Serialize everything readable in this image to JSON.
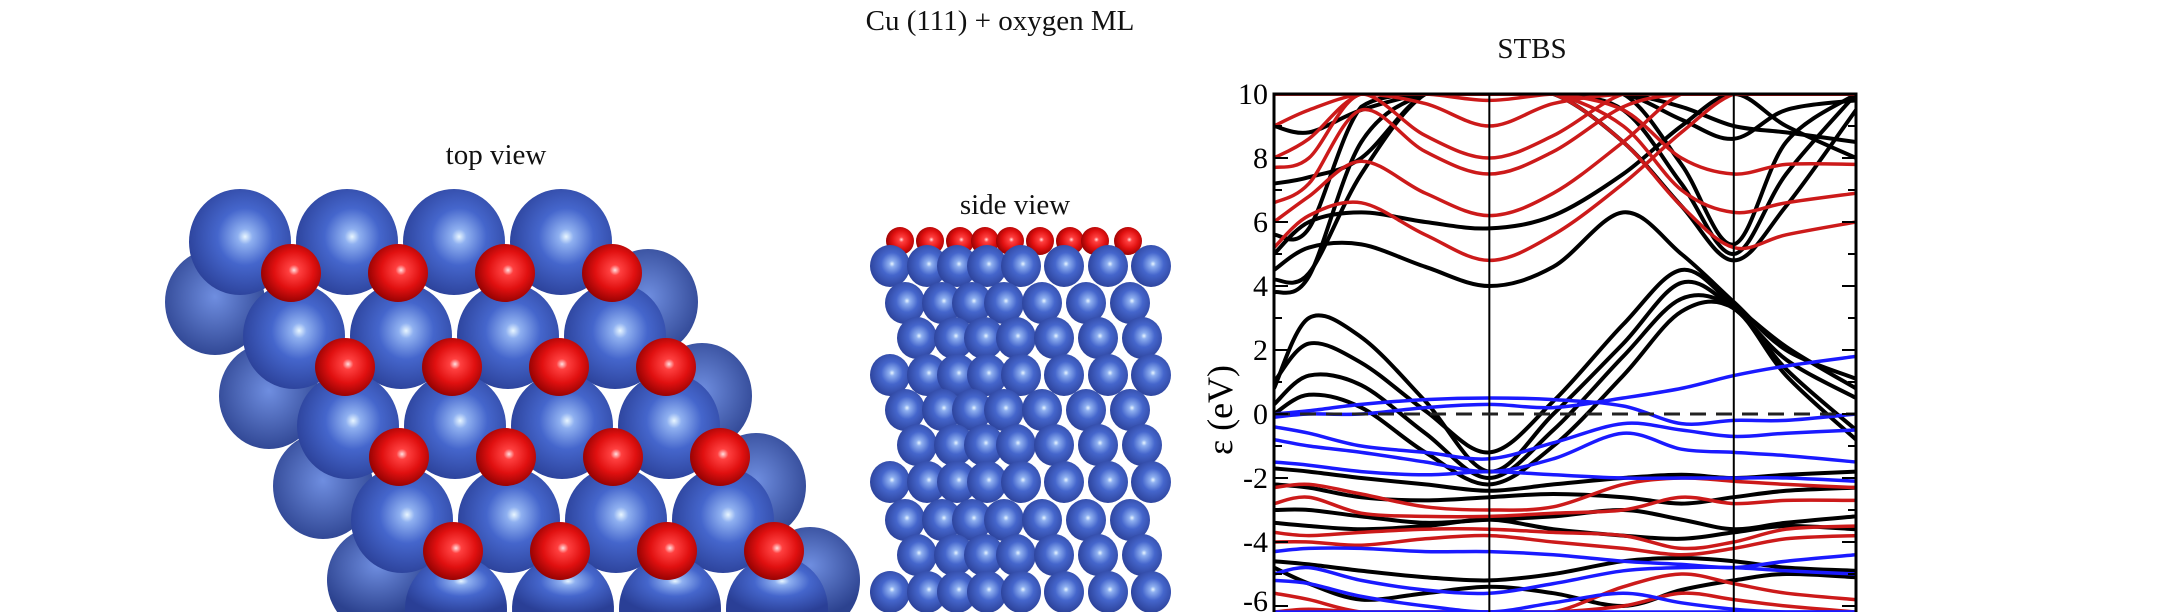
{
  "figure": {
    "title": "Cu (111) + oxygen ML",
    "top_view_label": "top view",
    "side_view_label": "side view",
    "colors": {
      "copper": "#3f5fc4",
      "oxygen": "#e01010"
    }
  },
  "chart_data": {
    "type": "line",
    "title": "STBS",
    "ylabel": "ε (eV)",
    "xlabel": "",
    "ylim": [
      -8,
      10
    ],
    "yticks": [
      10,
      8,
      6,
      4,
      2,
      0,
      -2,
      -4,
      -6
    ],
    "fermi_level": 0,
    "k_nodes": [
      0,
      0.06,
      0.15,
      0.26,
      0.37,
      0.48,
      0.6,
      0.7,
      0.79,
      0.88,
      1.0
    ],
    "high_symmetry_k": [
      0.37,
      0.79
    ],
    "colors": {
      "bulk": "#000000",
      "oxygen": "#cc1a1a",
      "surface": "#1a1aff"
    },
    "series": [
      {
        "name": "bulk",
        "bands": [
          [
            4.5,
            5.2,
            5.3,
            4.6,
            4.0,
            4.6,
            6.3,
            5.0,
            3.5,
            2.0,
            1.1
          ],
          [
            1.0,
            2.2,
            1.6,
            0.1,
            -1.2,
            0.4,
            2.8,
            4.5,
            3.4,
            2.1,
            0.8
          ],
          [
            0.8,
            3.0,
            2.4,
            0.4,
            -1.8,
            0.0,
            2.2,
            4.1,
            3.3,
            1.7,
            0.5
          ],
          [
            0.3,
            1.2,
            0.9,
            -0.6,
            -2.0,
            -0.5,
            1.8,
            3.6,
            3.3,
            1.4,
            -0.5
          ],
          [
            0.0,
            0.6,
            0.2,
            -1.2,
            -2.2,
            -1.0,
            1.2,
            3.2,
            3.3,
            1.2,
            -0.8
          ],
          [
            4.2,
            4.4,
            7.5,
            10.5,
            11,
            10.5,
            8.5,
            6.5,
            4.8,
            6.5,
            9.5
          ],
          [
            3.8,
            4.3,
            8.5,
            11,
            11,
            11,
            9.5,
            7.2,
            5.0,
            7.5,
            10.5
          ],
          [
            5.6,
            5.8,
            9.6,
            11,
            11,
            11,
            10.2,
            7.8,
            5.3,
            8.5,
            11
          ],
          [
            5.0,
            6.0,
            6.3,
            6.0,
            5.8,
            6.2,
            7.5,
            9.0,
            10.5,
            9.0,
            8.0
          ],
          [
            7.2,
            7.4,
            8.0,
            10.5,
            11,
            11,
            11,
            9.6,
            9.0,
            8.8,
            8.5
          ],
          [
            9.0,
            8.8,
            9.5,
            11,
            11,
            11,
            11,
            9.2,
            8.6,
            9.5,
            9.8
          ],
          [
            -1.7,
            -1.8,
            -2.0,
            -2.2,
            -2.4,
            -2.2,
            -2.0,
            -1.9,
            -2.0,
            -1.9,
            -1.8
          ],
          [
            -2.2,
            -2.3,
            -2.6,
            -2.7,
            -2.6,
            -2.5,
            -2.6,
            -2.8,
            -2.6,
            -2.4,
            -2.3
          ],
          [
            -3.0,
            -3.0,
            -3.2,
            -3.4,
            -3.3,
            -3.2,
            -3.0,
            -3.3,
            -3.6,
            -3.4,
            -3.2
          ],
          [
            -3.4,
            -3.5,
            -3.6,
            -3.5,
            -3.3,
            -3.6,
            -3.8,
            -3.9,
            -3.7,
            -3.5,
            -3.6
          ],
          [
            -4.6,
            -4.7,
            -4.9,
            -5.1,
            -5.2,
            -5.0,
            -4.6,
            -4.5,
            -4.6,
            -4.8,
            -4.9
          ],
          [
            -4.8,
            -5.3,
            -5.8,
            -5.6,
            -5.4,
            -5.6,
            -6.0,
            -5.5,
            -5.2,
            -5.0,
            -5.1
          ]
        ]
      },
      {
        "name": "oxygen",
        "bands": [
          [
            5.2,
            6.2,
            6.6,
            5.6,
            4.8,
            5.6,
            7.2,
            8.8,
            10.5,
            11,
            11
          ],
          [
            6.0,
            6.8,
            7.9,
            6.9,
            6.2,
            6.9,
            8.5,
            10.0,
            11,
            11,
            11
          ],
          [
            6.6,
            7.2,
            9.5,
            8.2,
            7.5,
            8.2,
            9.6,
            11,
            11,
            11,
            11
          ],
          [
            7.7,
            8.0,
            10.3,
            8.7,
            8.0,
            8.7,
            10.3,
            11,
            11,
            11,
            11
          ],
          [
            8.0,
            8.6,
            11,
            9.7,
            9.0,
            9.7,
            11,
            11,
            11,
            11,
            11
          ],
          [
            9.0,
            9.5,
            11,
            10.5,
            9.8,
            10.5,
            11,
            11,
            11,
            11,
            11
          ],
          [
            11,
            11,
            11,
            11,
            11,
            11,
            9.5,
            8.0,
            7.5,
            7.8,
            7.8
          ],
          [
            11,
            11,
            11,
            11,
            11,
            11,
            9.0,
            7.0,
            6.3,
            6.6,
            6.9
          ],
          [
            11,
            11,
            11,
            11,
            11,
            11,
            8.5,
            6.5,
            5.2,
            5.6,
            6.0
          ],
          [
            -2.3,
            -2.2,
            -2.5,
            -2.9,
            -3.0,
            -2.9,
            -2.2,
            -2.0,
            -2.1,
            -2.2,
            -2.3
          ],
          [
            -2.8,
            -2.6,
            -3.1,
            -3.2,
            -3.2,
            -3.1,
            -3.0,
            -2.6,
            -2.8,
            -2.7,
            -2.7
          ],
          [
            -3.7,
            -3.8,
            -3.7,
            -3.6,
            -3.6,
            -3.7,
            -3.8,
            -4.2,
            -4.0,
            -3.6,
            -3.5
          ],
          [
            -4.0,
            -4.0,
            -4.1,
            -3.9,
            -3.8,
            -4.0,
            -4.2,
            -4.4,
            -4.2,
            -3.9,
            -3.8
          ],
          [
            -5.6,
            -5.8,
            -6.2,
            -6.6,
            -6.8,
            -6.3,
            -5.4,
            -5.0,
            -5.3,
            -5.6,
            -5.8
          ],
          [
            -6.2,
            -6.1,
            -6.6,
            -7.0,
            -7.2,
            -6.8,
            -6.0,
            -5.6,
            -5.8,
            -6.0,
            -6.2
          ]
        ]
      },
      {
        "name": "surface",
        "bands": [
          [
            0.0,
            0.1,
            0.3,
            0.45,
            0.5,
            0.45,
            0.25,
            -0.3,
            -0.2,
            -0.2,
            0.0
          ],
          [
            -0.1,
            0.0,
            0.0,
            0.2,
            0.3,
            0.2,
            0.5,
            0.8,
            1.2,
            1.5,
            1.8
          ],
          [
            -0.4,
            -0.6,
            -1.0,
            -1.2,
            -1.4,
            -0.9,
            -0.3,
            -0.5,
            -0.7,
            -0.6,
            -0.5
          ],
          [
            -0.8,
            -1.0,
            -1.2,
            -1.5,
            -1.8,
            -1.4,
            -0.6,
            -1.1,
            -1.2,
            -1.3,
            -1.5
          ],
          [
            -1.5,
            -1.6,
            -1.8,
            -1.9,
            -1.8,
            -1.9,
            -2.0,
            -2.0,
            -2.0,
            -2.0,
            -2.1
          ],
          [
            -4.3,
            -4.2,
            -4.2,
            -4.3,
            -4.3,
            -4.4,
            -4.6,
            -4.7,
            -4.8,
            -4.6,
            -4.4
          ],
          [
            -5.0,
            -4.8,
            -5.2,
            -5.5,
            -5.6,
            -5.3,
            -4.9,
            -4.8,
            -4.8,
            -4.9,
            -5.0
          ],
          [
            -5.2,
            -5.3,
            -5.7,
            -6.0,
            -6.2,
            -5.9,
            -5.6,
            -5.9,
            -6.1,
            -6.2,
            -6.3
          ],
          [
            -6.8,
            -6.6,
            -6.4,
            -6.5,
            -6.6,
            -6.4,
            -6.2,
            -6.3,
            -6.5,
            -6.8,
            -6.9
          ]
        ]
      }
    ]
  }
}
